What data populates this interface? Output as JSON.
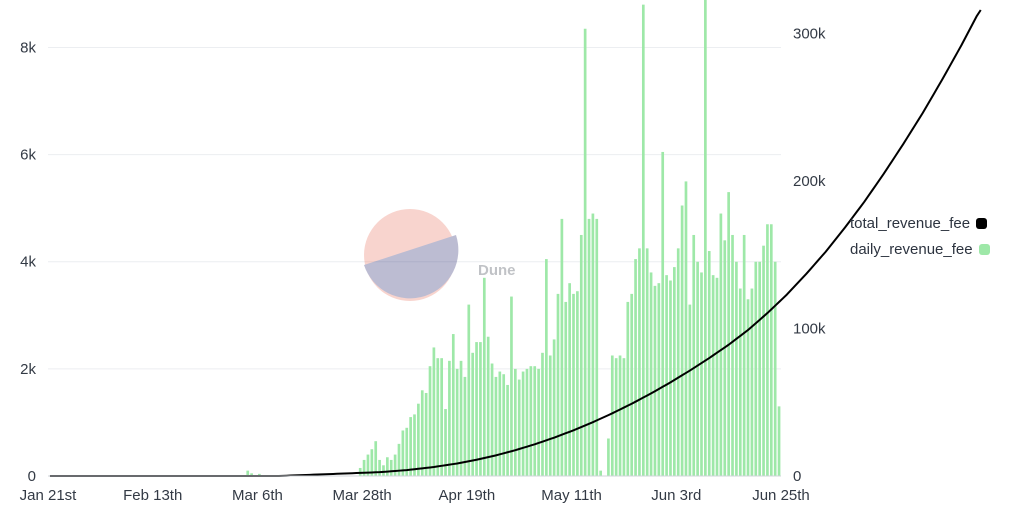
{
  "chart_data": {
    "type": "bar+line",
    "title": "",
    "x_tick_labels": [
      "Jan 21st",
      "Feb 13th",
      "Mar 6th",
      "Mar 28th",
      "Apr 19th",
      "May 11th",
      "Jun 3rd",
      "Jun 25th"
    ],
    "y_left": {
      "ticks": [
        "0",
        "2k",
        "4k",
        "6k",
        "8k"
      ],
      "range": [
        0,
        8700
      ]
    },
    "y_right": {
      "ticks": [
        "0",
        "100k",
        "200k",
        "300k"
      ],
      "range": [
        0,
        316000
      ]
    },
    "grid": true,
    "legend_position": "right",
    "series": [
      {
        "name": "total_revenue_fee",
        "kind": "line",
        "axis": "right",
        "color": "#000000",
        "values": [
          0,
          0,
          0,
          0,
          0,
          0,
          0,
          0,
          0,
          0,
          0,
          0,
          0,
          0,
          0,
          0,
          0,
          0,
          0,
          0,
          0,
          0,
          0,
          0,
          0,
          0,
          0,
          0,
          0,
          0,
          0,
          0,
          0,
          0,
          0,
          0,
          0,
          0,
          0,
          0,
          0,
          0,
          0,
          0,
          0,
          0,
          0,
          0,
          0,
          0,
          0,
          0,
          0,
          0,
          0,
          0,
          0,
          0,
          0,
          0,
          100,
          200,
          300,
          400,
          500,
          600,
          700,
          800,
          900,
          1000,
          1100,
          1200,
          1300,
          1400,
          1500,
          1600,
          1700,
          1800,
          1900,
          2000,
          2100,
          2200,
          2300,
          2400,
          2500,
          2600,
          2800,
          3000,
          3200,
          3400,
          3600,
          3800,
          4000,
          4300,
          4600,
          4900,
          5200,
          5500,
          5800,
          6100,
          6500,
          6900,
          7300,
          7700,
          8100,
          8500,
          9000,
          9500,
          10000,
          10500,
          11000,
          11600,
          12200,
          12800,
          13400,
          14000,
          14700,
          15400,
          16100,
          16800,
          17500,
          18300,
          19100,
          19900,
          20700,
          21500,
          22400,
          23300,
          24200,
          25100,
          26000,
          27000,
          28000,
          29000,
          30000,
          31000,
          32100,
          33200,
          34300,
          35400,
          36500,
          37700,
          38900,
          40100,
          41300,
          42500,
          43800,
          45100,
          46400,
          47700,
          49000,
          50400,
          51800,
          53200,
          54600,
          56000,
          57500,
          59000,
          60500,
          62000,
          63500,
          65100,
          66700,
          68300,
          69900,
          71500,
          73200,
          74900,
          76600,
          78300,
          80000,
          81800,
          83600,
          85400,
          87200,
          89000,
          91000,
          93000,
          95000,
          97000,
          99000,
          101300,
          103600,
          105900,
          108200,
          110500,
          113000,
          115500,
          118000,
          120500,
          123000,
          125800,
          128600,
          131400,
          134200,
          137000,
          140000,
          143000,
          146000,
          149000,
          152000,
          155300,
          158600,
          161900,
          165200,
          168500,
          172000,
          175500,
          179000,
          182500,
          186000,
          189800,
          193600,
          197400,
          201200,
          205000,
          209000,
          213000,
          217000,
          221000,
          225000,
          229200,
          233400,
          237600,
          241800,
          246000,
          250500,
          255000,
          259500,
          264000,
          268500,
          273200,
          277900,
          282600,
          287300,
          292000,
          297000,
          302000,
          307000,
          312000,
          316000
        ]
      },
      {
        "name": "daily_revenue_fee",
        "kind": "bar",
        "axis": "left",
        "color": "#9ee8a8",
        "values": [
          0,
          0,
          0,
          0,
          0,
          0,
          0,
          0,
          0,
          0,
          0,
          0,
          0,
          0,
          0,
          0,
          0,
          0,
          0,
          0,
          0,
          0,
          0,
          0,
          0,
          0,
          0,
          0,
          0,
          0,
          0,
          0,
          0,
          0,
          0,
          0,
          0,
          0,
          0,
          0,
          0,
          0,
          0,
          0,
          0,
          0,
          0,
          0,
          0,
          0,
          0,
          100,
          50,
          0,
          40,
          0,
          0,
          0,
          0,
          0,
          0,
          0,
          0,
          0,
          0,
          0,
          0,
          0,
          0,
          0,
          0,
          0,
          0,
          0,
          0,
          0,
          0,
          0,
          0,
          0,
          150,
          300,
          400,
          500,
          650,
          300,
          200,
          350,
          300,
          400,
          600,
          850,
          900,
          1100,
          1150,
          1350,
          1600,
          1550,
          2050,
          2400,
          2200,
          2200,
          1250,
          2150,
          2650,
          2000,
          2150,
          1850,
          3200,
          2300,
          2500,
          2500,
          3700,
          2600,
          2100,
          1850,
          1950,
          1900,
          1700,
          3350,
          2000,
          1800,
          1950,
          2000,
          2050,
          2050,
          2000,
          2300,
          4050,
          2250,
          2550,
          3400,
          4800,
          3250,
          3600,
          3400,
          3450,
          4500,
          8350,
          4800,
          4900,
          4800,
          100,
          0,
          700,
          2250,
          2200,
          2250,
          2200,
          3250,
          3400,
          4050,
          4250,
          8800,
          4250,
          3800,
          3550,
          3600,
          6050,
          3750,
          3650,
          3900,
          4250,
          5050,
          5500,
          3200,
          4500,
          4000,
          3800,
          9000,
          4200,
          3750,
          3700,
          4900,
          4400,
          5300,
          4500,
          4000,
          3500,
          4500,
          3300,
          3500,
          4000,
          4000,
          4300,
          4700,
          4700,
          4000,
          1300
        ]
      }
    ]
  },
  "legend": {
    "items": [
      {
        "label": "total_revenue_fee",
        "color": "#000000"
      },
      {
        "label": "daily_revenue_fee",
        "color": "#9ee8a8"
      }
    ]
  },
  "watermark": {
    "text": "Dune"
  }
}
